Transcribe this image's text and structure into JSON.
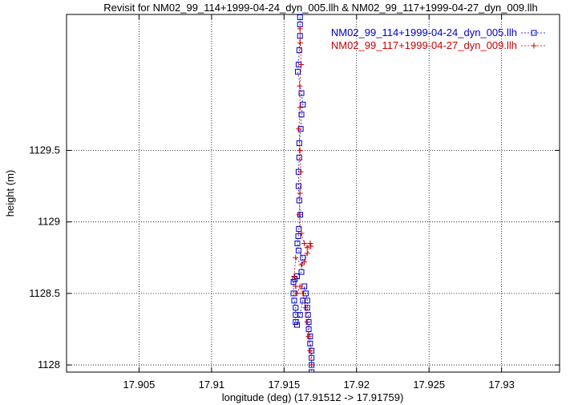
{
  "chart_data": {
    "type": "line",
    "title": "Revisit for NM02_99_114+1999-04-24_dyn_005.llh & NM02_99_117+1999-04-27_dyn_009.llh",
    "xlabel": "longitude (deg) (17.91512 -> 17.91759)",
    "ylabel": "height (m)",
    "xlim": [
      17.9,
      17.934
    ],
    "ylim": [
      1127.95,
      1130.45
    ],
    "xticks": [
      17.905,
      17.91,
      17.915,
      17.92,
      17.925,
      17.93
    ],
    "xtick_labels": [
      "17.905",
      "17.91",
      "17.915",
      "17.92",
      "17.925",
      "17.93"
    ],
    "yticks": [
      1128,
      1128.5,
      1129,
      1129.5
    ],
    "ytick_labels": [
      "1128",
      "1128.5",
      "1129",
      "1129.5"
    ],
    "grid": true,
    "legend_position": "top-right",
    "series": [
      {
        "name": "NM02_99_114+1999-04-24_dyn_005.llh",
        "color": "#0000cc",
        "marker": "square",
        "line": "dashed",
        "x": [
          17.9161,
          17.9161,
          17.9161,
          17.91605,
          17.916,
          17.91595,
          17.9162,
          17.9163,
          17.9162,
          17.91615,
          17.91605,
          17.91605,
          17.916,
          17.916,
          17.91605,
          17.91612,
          17.91602,
          17.91598,
          17.91592,
          17.916,
          17.9163,
          17.9162,
          17.9159,
          17.91575,
          17.91565,
          17.91565,
          17.9157,
          17.9158,
          17.9158,
          17.9158,
          17.9159,
          17.9161,
          17.9163,
          17.9164,
          17.9165,
          17.9166,
          17.9166,
          17.91665,
          17.9167,
          17.9167,
          17.9168,
          17.9168,
          17.9169,
          17.9169,
          17.9169,
          17.9169
        ],
        "y": [
          1130.43,
          1130.38,
          1130.3,
          1130.2,
          1130.1,
          1130.05,
          1129.9,
          1129.82,
          1129.75,
          1129.65,
          1129.55,
          1129.45,
          1129.35,
          1129.25,
          1129.15,
          1129.05,
          1128.95,
          1128.9,
          1128.85,
          1128.8,
          1128.75,
          1128.65,
          1128.62,
          1128.6,
          1128.58,
          1128.5,
          1128.45,
          1128.4,
          1128.35,
          1128.3,
          1128.28,
          1128.35,
          1128.45,
          1128.55,
          1128.5,
          1128.45,
          1128.4,
          1128.35,
          1128.3,
          1128.25,
          1128.2,
          1128.15,
          1128.1,
          1128.05,
          1128.0,
          1127.95
        ]
      },
      {
        "name": "NM02_99_117+1999-04-27_dyn_009.llh",
        "color": "#cc0000",
        "marker": "plus",
        "line": "dashed",
        "x": [
          17.9161,
          17.91612,
          17.91618,
          17.91608,
          17.9161,
          17.91602,
          17.9161,
          17.91615,
          17.9161,
          17.91605,
          17.9162,
          17.9164,
          17.9166,
          17.9168,
          17.91685,
          17.9166,
          17.9164,
          17.9162,
          17.9158,
          17.9157,
          17.9158,
          17.9159,
          17.9161,
          17.9163,
          17.9165,
          17.9166,
          17.9167,
          17.9168,
          17.9169
        ],
        "y": [
          1130.35,
          1130.25,
          1130.1,
          1129.95,
          1129.8,
          1129.65,
          1129.5,
          1129.35,
          1129.2,
          1129.05,
          1128.92,
          1128.85,
          1128.82,
          1128.85,
          1128.83,
          1128.78,
          1128.72,
          1128.7,
          1128.75,
          1128.62,
          1128.55,
          1128.5,
          1128.55,
          1128.5,
          1128.4,
          1128.3,
          1128.2,
          1128.1,
          1128.0
        ]
      }
    ]
  }
}
